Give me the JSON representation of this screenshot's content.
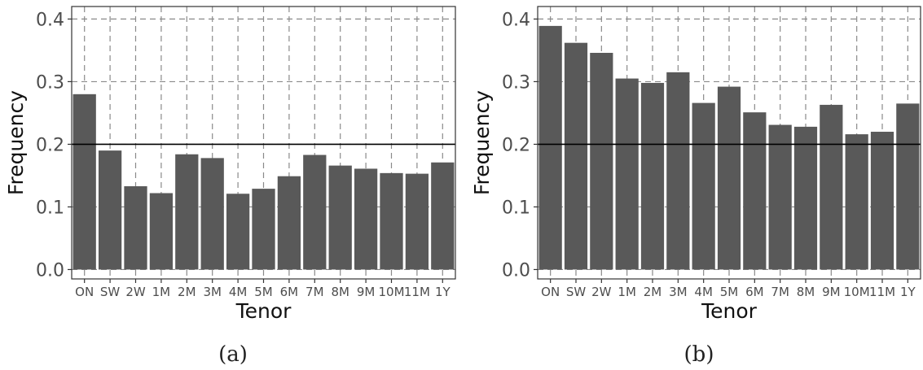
{
  "chart_data": [
    {
      "type": "bar",
      "panel_label": "(a)",
      "xlabel": "Tenor",
      "ylabel": "Frequency",
      "categories": [
        "ON",
        "SW",
        "2W",
        "1M",
        "2M",
        "3M",
        "4M",
        "5M",
        "6M",
        "7M",
        "8M",
        "9M",
        "10M",
        "11M",
        "1Y"
      ],
      "values": [
        0.28,
        0.19,
        0.133,
        0.122,
        0.184,
        0.178,
        0.121,
        0.129,
        0.149,
        0.183,
        0.166,
        0.161,
        0.154,
        0.153,
        0.171
      ],
      "ylim": [
        -0.015,
        0.42
      ],
      "yticks": [
        0.0,
        0.1,
        0.2,
        0.3,
        0.4
      ],
      "ytick_labels": [
        "0.0",
        "0.1",
        "0.2",
        "0.3",
        "0.4"
      ],
      "reference_line": 0.2,
      "grid": true,
      "bar_color": "#595959"
    },
    {
      "type": "bar",
      "panel_label": "(b)",
      "xlabel": "Tenor",
      "ylabel": "Frequency",
      "categories": [
        "ON",
        "SW",
        "2W",
        "1M",
        "2M",
        "3M",
        "4M",
        "5M",
        "6M",
        "7M",
        "8M",
        "9M",
        "10M",
        "11M",
        "1Y"
      ],
      "values": [
        0.389,
        0.362,
        0.346,
        0.305,
        0.298,
        0.315,
        0.266,
        0.292,
        0.251,
        0.231,
        0.228,
        0.263,
        0.216,
        0.22,
        0.265
      ],
      "ylim": [
        -0.015,
        0.42
      ],
      "yticks": [
        0.0,
        0.1,
        0.2,
        0.3,
        0.4
      ],
      "ytick_labels": [
        "0.0",
        "0.1",
        "0.2",
        "0.3",
        "0.4"
      ],
      "reference_line": 0.2,
      "grid": true,
      "bar_color": "#595959"
    }
  ]
}
